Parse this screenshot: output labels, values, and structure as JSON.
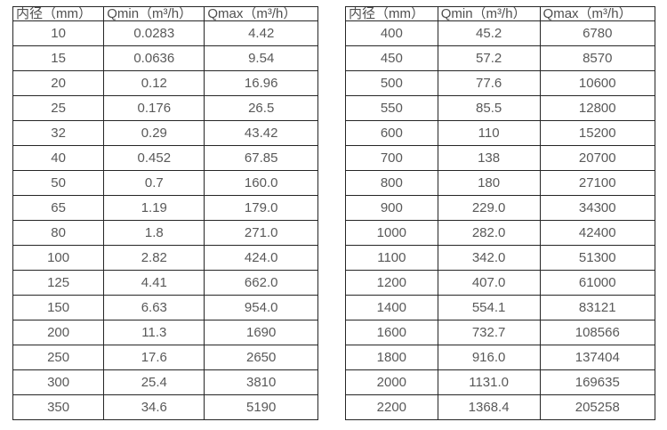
{
  "page": {
    "background_color": "#ffffff",
    "border_color": "#262626",
    "text_color": "#595959"
  },
  "chart_data": [
    {
      "type": "table",
      "title": "",
      "columns": [
        "内径（mm）",
        "Qmin（m³/h）",
        "Qmax（m³/h）"
      ],
      "rows": [
        [
          "10",
          "0.0283",
          "4.42"
        ],
        [
          "15",
          "0.0636",
          "9.54"
        ],
        [
          "20",
          "0.12",
          "16.96"
        ],
        [
          "25",
          "0.176",
          "26.5"
        ],
        [
          "32",
          "0.29",
          "43.42"
        ],
        [
          "40",
          "0.452",
          "67.85"
        ],
        [
          "50",
          "0.7",
          "160.0"
        ],
        [
          "65",
          "1.19",
          "179.0"
        ],
        [
          "80",
          "1.8",
          "271.0"
        ],
        [
          "100",
          "2.82",
          "424.0"
        ],
        [
          "125",
          "4.41",
          "662.0"
        ],
        [
          "150",
          "6.63",
          "954.0"
        ],
        [
          "200",
          "11.3",
          "1690"
        ],
        [
          "250",
          "17.6",
          "2650"
        ],
        [
          "300",
          "25.4",
          "3810"
        ],
        [
          "350",
          "34.6",
          "5190"
        ]
      ]
    },
    {
      "type": "table",
      "title": "",
      "columns": [
        "内径（mm）",
        "Qmin（m³/h）",
        "Qmax（m³/h）"
      ],
      "rows": [
        [
          "400",
          "45.2",
          "6780"
        ],
        [
          "450",
          "57.2",
          "8570"
        ],
        [
          "500",
          "77.6",
          "10600"
        ],
        [
          "550",
          "85.5",
          "12800"
        ],
        [
          "600",
          "110",
          "15200"
        ],
        [
          "700",
          "138",
          "20700"
        ],
        [
          "800",
          "180",
          "27100"
        ],
        [
          "900",
          "229.0",
          "34300"
        ],
        [
          "1000",
          "282.0",
          "42400"
        ],
        [
          "1100",
          "342.0",
          "51300"
        ],
        [
          "1200",
          "407.0",
          "61000"
        ],
        [
          "1400",
          "554.1",
          "83121"
        ],
        [
          "1600",
          "732.7",
          "108566"
        ],
        [
          "1800",
          "916.0",
          "137404"
        ],
        [
          "2000",
          "1131.0",
          "169635"
        ],
        [
          "2200",
          "1368.4",
          "205258"
        ]
      ]
    }
  ]
}
